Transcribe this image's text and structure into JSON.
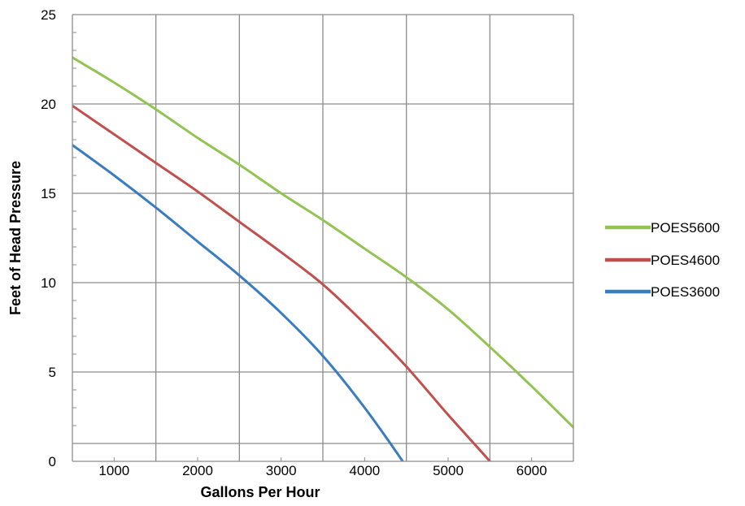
{
  "chart_data": {
    "type": "line",
    "xlabel": "Gallons Per Hour",
    "ylabel": "Feet of Head Pressure",
    "xlim": [
      500,
      6500
    ],
    "ylim": [
      0,
      25
    ],
    "x_ticks": [
      1000,
      2000,
      3000,
      4000,
      5000,
      6000
    ],
    "y_ticks": [
      0,
      5,
      10,
      15,
      20,
      25
    ],
    "y_tick_labels": [
      "0",
      "5",
      "10",
      "15",
      "20",
      "25"
    ],
    "x_tick_labels": [
      "1000",
      "2000",
      "3000",
      "4000",
      "5000",
      "6000"
    ],
    "x_gridlines": [
      1500,
      2500,
      3500,
      4500,
      5500
    ],
    "y_gridlines": [
      1,
      5,
      10,
      15,
      20
    ],
    "grid": true,
    "legend_position": "right",
    "series": [
      {
        "name": "POES5600",
        "color": "#92c353",
        "x": [
          500,
          1000,
          1500,
          2000,
          2500,
          3000,
          3500,
          4000,
          4500,
          5000,
          5500,
          6000,
          6500
        ],
        "y": [
          22.6,
          21.2,
          19.7,
          18.1,
          16.6,
          15.0,
          13.5,
          11.9,
          10.3,
          8.5,
          6.4,
          4.2,
          1.9
        ]
      },
      {
        "name": "POES4600",
        "color": "#c0504d",
        "x": [
          500,
          1000,
          1500,
          2000,
          2500,
          3000,
          3500,
          4000,
          4500,
          5000,
          5500,
          5800
        ],
        "y": [
          19.9,
          18.3,
          16.7,
          15.1,
          13.4,
          11.7,
          9.9,
          7.7,
          5.3,
          2.6,
          0.0,
          -1.7
        ]
      },
      {
        "name": "POES3600",
        "color": "#3a7cc0",
        "x": [
          500,
          1000,
          1500,
          2000,
          2500,
          3000,
          3500,
          4000,
          4500,
          4700
        ],
        "y": [
          17.7,
          16.0,
          14.2,
          12.3,
          10.4,
          8.3,
          5.9,
          3.0,
          -0.3,
          -1.8
        ]
      }
    ]
  }
}
